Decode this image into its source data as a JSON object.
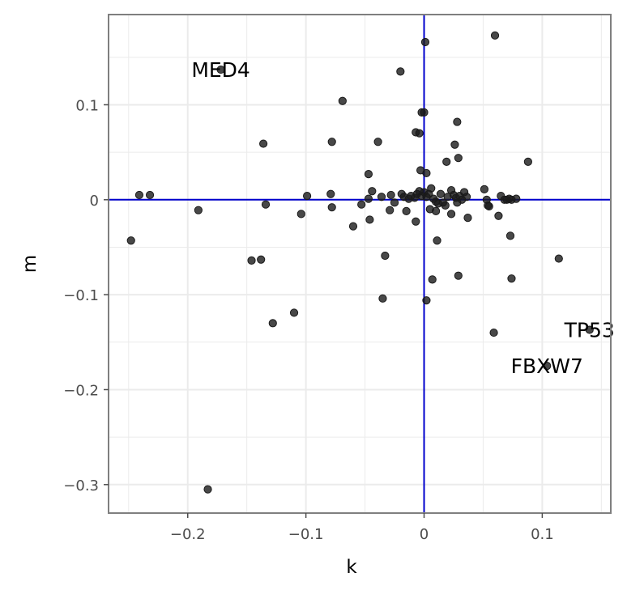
{
  "chart_data": {
    "type": "scatter",
    "xlabel": "k",
    "ylabel": "m",
    "xlim": [
      -0.267,
      0.158
    ],
    "ylim": [
      -0.33,
      0.195
    ],
    "x_ticks": [
      -0.2,
      -0.1,
      0,
      0.1
    ],
    "x_tick_labels": [
      "−0.2",
      "−0.1",
      "0",
      "0.1"
    ],
    "y_ticks": [
      -0.3,
      -0.2,
      -0.1,
      0,
      0.1
    ],
    "y_tick_labels": [
      "−0.3",
      "−0.2",
      "−0.1",
      "0",
      "0.1"
    ],
    "grid": true,
    "reference_lines": {
      "x": 0,
      "y": 0,
      "color": "#0000cc"
    },
    "colors": {
      "points": "#1a1a1a",
      "grid": "#ebebeb",
      "panel_border": "#7f7f7f"
    },
    "labels": [
      {
        "text": "MED4",
        "x": -0.172,
        "y": 0.137
      },
      {
        "text": "TP53",
        "x": 0.14,
        "y": -0.137
      },
      {
        "text": "FBXW7",
        "x": 0.104,
        "y": -0.175
      }
    ],
    "points": [
      {
        "x": -0.172,
        "y": 0.137
      },
      {
        "x": 0.06,
        "y": 0.173
      },
      {
        "x": 0.001,
        "y": 0.166
      },
      {
        "x": -0.02,
        "y": 0.135
      },
      {
        "x": -0.069,
        "y": 0.104
      },
      {
        "x": -0.002,
        "y": 0.092
      },
      {
        "x": 0.0,
        "y": 0.092
      },
      {
        "x": 0.028,
        "y": 0.082
      },
      {
        "x": -0.007,
        "y": 0.071
      },
      {
        "x": -0.004,
        "y": 0.07
      },
      {
        "x": -0.136,
        "y": 0.059
      },
      {
        "x": -0.078,
        "y": 0.061
      },
      {
        "x": -0.039,
        "y": 0.061
      },
      {
        "x": 0.026,
        "y": 0.058
      },
      {
        "x": 0.029,
        "y": 0.044
      },
      {
        "x": 0.019,
        "y": 0.04
      },
      {
        "x": 0.088,
        "y": 0.04
      },
      {
        "x": -0.003,
        "y": 0.031
      },
      {
        "x": -0.047,
        "y": 0.027
      },
      {
        "x": 0.002,
        "y": 0.028
      },
      {
        "x": -0.241,
        "y": 0.005
      },
      {
        "x": -0.232,
        "y": 0.005
      },
      {
        "x": -0.099,
        "y": 0.004
      },
      {
        "x": -0.079,
        "y": 0.006
      },
      {
        "x": -0.044,
        "y": 0.009
      },
      {
        "x": -0.036,
        "y": 0.003
      },
      {
        "x": -0.047,
        "y": 0.001
      },
      {
        "x": -0.053,
        "y": -0.005
      },
      {
        "x": -0.028,
        "y": 0.005
      },
      {
        "x": -0.025,
        "y": -0.003
      },
      {
        "x": -0.019,
        "y": 0.006
      },
      {
        "x": -0.017,
        "y": 0.003
      },
      {
        "x": -0.013,
        "y": 0.001
      },
      {
        "x": -0.011,
        "y": 0.004
      },
      {
        "x": -0.008,
        "y": 0.002
      },
      {
        "x": -0.006,
        "y": 0.006
      },
      {
        "x": -0.004,
        "y": 0.009
      },
      {
        "x": -0.002,
        "y": 0.004
      },
      {
        "x": 0.0,
        "y": 0.008
      },
      {
        "x": 0.002,
        "y": 0.003
      },
      {
        "x": 0.004,
        "y": 0.006
      },
      {
        "x": 0.006,
        "y": 0.012
      },
      {
        "x": 0.008,
        "y": 0.001
      },
      {
        "x": 0.01,
        "y": -0.002
      },
      {
        "x": 0.012,
        "y": -0.004
      },
      {
        "x": 0.014,
        "y": 0.006
      },
      {
        "x": 0.016,
        "y": -0.003
      },
      {
        "x": 0.018,
        "y": -0.006
      },
      {
        "x": 0.02,
        "y": 0.003
      },
      {
        "x": 0.023,
        "y": 0.01
      },
      {
        "x": 0.025,
        "y": 0.005
      },
      {
        "x": 0.027,
        "y": 0.002
      },
      {
        "x": 0.028,
        "y": -0.003
      },
      {
        "x": 0.03,
        "y": 0.004
      },
      {
        "x": 0.032,
        "y": 0.0
      },
      {
        "x": 0.034,
        "y": 0.008
      },
      {
        "x": 0.036,
        "y": 0.003
      },
      {
        "x": 0.051,
        "y": 0.011
      },
      {
        "x": 0.053,
        "y": 0.0
      },
      {
        "x": 0.054,
        "y": -0.006
      },
      {
        "x": 0.055,
        "y": -0.007
      },
      {
        "x": 0.065,
        "y": 0.004
      },
      {
        "x": 0.068,
        "y": 0.0
      },
      {
        "x": 0.07,
        "y": 0.0
      },
      {
        "x": 0.072,
        "y": 0.001
      },
      {
        "x": 0.074,
        "y": 0.0
      },
      {
        "x": 0.078,
        "y": 0.001
      },
      {
        "x": -0.191,
        "y": -0.011
      },
      {
        "x": -0.134,
        "y": -0.005
      },
      {
        "x": -0.104,
        "y": -0.015
      },
      {
        "x": -0.078,
        "y": -0.008
      },
      {
        "x": -0.06,
        "y": -0.028
      },
      {
        "x": -0.046,
        "y": -0.021
      },
      {
        "x": -0.029,
        "y": -0.011
      },
      {
        "x": -0.015,
        "y": -0.012
      },
      {
        "x": -0.007,
        "y": -0.023
      },
      {
        "x": 0.005,
        "y": -0.01
      },
      {
        "x": 0.01,
        "y": -0.012
      },
      {
        "x": 0.023,
        "y": -0.015
      },
      {
        "x": 0.037,
        "y": -0.019
      },
      {
        "x": 0.063,
        "y": -0.017
      },
      {
        "x": -0.248,
        "y": -0.043
      },
      {
        "x": 0.011,
        "y": -0.043
      },
      {
        "x": 0.073,
        "y": -0.038
      },
      {
        "x": -0.146,
        "y": -0.064
      },
      {
        "x": -0.138,
        "y": -0.063
      },
      {
        "x": -0.033,
        "y": -0.059
      },
      {
        "x": 0.114,
        "y": -0.062
      },
      {
        "x": 0.007,
        "y": -0.084
      },
      {
        "x": 0.029,
        "y": -0.08
      },
      {
        "x": 0.074,
        "y": -0.083
      },
      {
        "x": -0.035,
        "y": -0.104
      },
      {
        "x": 0.002,
        "y": -0.106
      },
      {
        "x": -0.11,
        "y": -0.119
      },
      {
        "x": -0.128,
        "y": -0.13
      },
      {
        "x": 0.059,
        "y": -0.14
      },
      {
        "x": 0.14,
        "y": -0.137
      },
      {
        "x": 0.104,
        "y": -0.175
      },
      {
        "x": -0.183,
        "y": -0.305
      }
    ]
  }
}
